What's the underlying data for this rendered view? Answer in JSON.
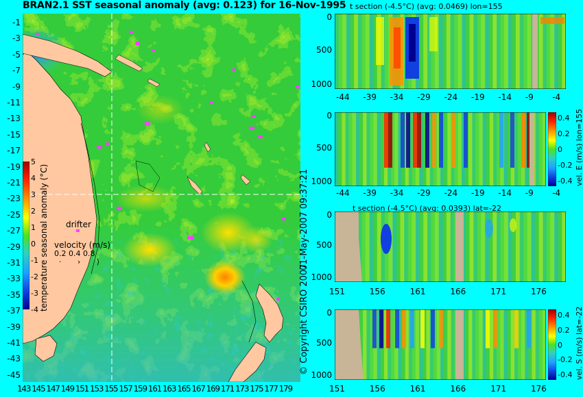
{
  "main_map": {
    "title": "BRAN2.1 SST seasonal anomaly (avg: 0.123) for 16-Nov-1995",
    "lat_ticks": [
      "-1",
      "-3",
      "-5",
      "-7",
      "-9",
      "-11",
      "-13",
      "-15",
      "-17",
      "-19",
      "-21",
      "-23",
      "-25",
      "-27",
      "-29",
      "-31",
      "-33",
      "-35",
      "-37",
      "-39",
      "-41",
      "-43",
      "-45"
    ],
    "lon_ticks": [
      "143",
      "145",
      "147",
      "149",
      "151",
      "153",
      "155",
      "157",
      "159",
      "161",
      "163",
      "165",
      "167",
      "169",
      "171",
      "173",
      "175",
      "177",
      "179"
    ],
    "colorbar_label": "temperature seasonal anomaly (°C)",
    "colorbar_ticks": [
      "5",
      "4",
      "3",
      "2",
      "1",
      "0",
      "-1",
      "-2",
      "-3",
      "-4"
    ],
    "drifter_label": "drifter",
    "velocity_label": "velocity (m/s)",
    "velocity_scale": "0.2 0.4 0.8",
    "section_lon_marker": 155,
    "section_lat_marker": -22
  },
  "side_text": "01-May-2007 09:37:21",
  "copyright": "© Copyright CSIRO 2007",
  "panels": [
    {
      "id": "panel1",
      "title": "t section (-4.5°C) (avg: 0.0469) lon=155",
      "y_ticks": [
        "0",
        "500",
        "1000"
      ],
      "x_ticks": [
        "-44",
        "-39",
        "-34",
        "-29",
        "-24",
        "-19",
        "-14",
        "-9",
        "-4"
      ],
      "colorbar": false
    },
    {
      "id": "panel2",
      "title": "",
      "y_ticks": [
        "0",
        "500",
        "1000"
      ],
      "x_ticks": [
        "-44",
        "-39",
        "-34",
        "-29",
        "-24",
        "-19",
        "-14",
        "-9",
        "-4"
      ],
      "colorbar": true,
      "cb_ticks": [
        "0.4",
        "0.2",
        "0",
        "-0.2",
        "-0.4"
      ],
      "cb_label": "vel. E (m/s) lon=155"
    },
    {
      "id": "panel3",
      "title": "t section (-4.5°C) (avg: 0.0393) lat=-22",
      "y_ticks": [
        "0",
        "500",
        "1000"
      ],
      "x_ticks": [
        "151",
        "156",
        "161",
        "166",
        "171",
        "176"
      ],
      "colorbar": false
    },
    {
      "id": "panel4",
      "title": "",
      "y_ticks": [
        "0",
        "500",
        "1000"
      ],
      "x_ticks": [
        "151",
        "156",
        "161",
        "166",
        "171",
        "176"
      ],
      "colorbar": true,
      "cb_ticks": [
        "0.4",
        "0.2",
        "0",
        "-0.2",
        "-0.4"
      ],
      "cb_label": "vel. S (m/s) lat=-22"
    }
  ],
  "colors": {
    "background": "#00ffff",
    "land": "#ffc8a0",
    "section_land": "#c8b496",
    "drifter": "#ff40ff",
    "field_mid": "#40d040"
  },
  "chart_data": {
    "type": "heatmap",
    "title": "BRAN2.1 SST seasonal anomaly (avg: 0.123) for 16-Nov-1995",
    "xlabel": "",
    "ylabel": "",
    "xlim": [
      143,
      180
    ],
    "ylim": [
      -45,
      0
    ],
    "colorbar_range": [
      -4,
      5
    ]
  }
}
